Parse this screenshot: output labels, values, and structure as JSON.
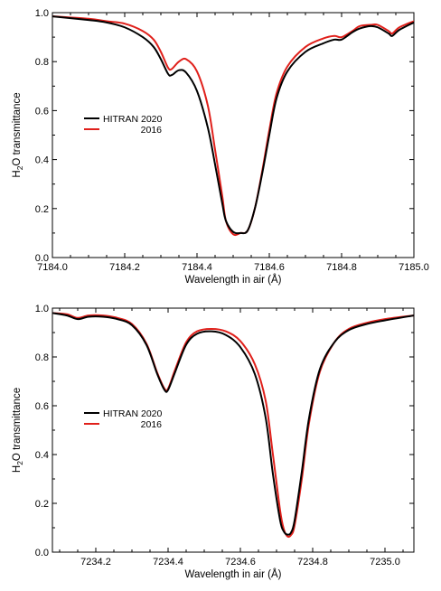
{
  "chart_data": [
    {
      "type": "line",
      "xlabel": "Wavelength in air (Å)",
      "ylabel_main": "H",
      "ylabel_sub": "2",
      "ylabel_rest": "O transmittance",
      "xlim": [
        7184.0,
        7185.0
      ],
      "ylim": [
        0.0,
        1.0
      ],
      "x_ticks": [
        "7184.0",
        "7184.2",
        "7184.4",
        "7184.6",
        "7184.8",
        "7185.0"
      ],
      "x_tick_values": [
        7184.0,
        7184.2,
        7184.4,
        7184.6,
        7184.8,
        7185.0
      ],
      "y_ticks": [
        "0.0",
        "0.2",
        "0.4",
        "0.6",
        "0.8",
        "1.0"
      ],
      "y_tick_values": [
        0.0,
        0.2,
        0.4,
        0.6,
        0.8,
        1.0
      ],
      "legend_placement": "left",
      "series": [
        {
          "name": "HITRAN 2020",
          "color": "#000000",
          "x": [
            7184.0,
            7184.1,
            7184.15,
            7184.2,
            7184.25,
            7184.28,
            7184.3,
            7184.32,
            7184.33,
            7184.35,
            7184.37,
            7184.4,
            7184.43,
            7184.45,
            7184.47,
            7184.48,
            7184.5,
            7184.52,
            7184.54,
            7184.56,
            7184.58,
            7184.6,
            7184.62,
            7184.65,
            7184.7,
            7184.75,
            7184.78,
            7184.8,
            7184.83,
            7184.85,
            7184.88,
            7184.9,
            7184.93,
            7184.94,
            7184.96,
            7185.0
          ],
          "y": [
            0.985,
            0.97,
            0.96,
            0.94,
            0.9,
            0.86,
            0.81,
            0.75,
            0.745,
            0.765,
            0.755,
            0.68,
            0.53,
            0.38,
            0.22,
            0.15,
            0.105,
            0.1,
            0.11,
            0.2,
            0.34,
            0.5,
            0.65,
            0.76,
            0.84,
            0.875,
            0.89,
            0.89,
            0.92,
            0.935,
            0.945,
            0.94,
            0.915,
            0.905,
            0.93,
            0.96
          ]
        },
        {
          "name": "2016",
          "color": "#e0201b",
          "x": [
            7184.0,
            7184.1,
            7184.15,
            7184.2,
            7184.25,
            7184.28,
            7184.3,
            7184.32,
            7184.33,
            7184.35,
            7184.37,
            7184.4,
            7184.43,
            7184.45,
            7184.47,
            7184.48,
            7184.5,
            7184.52,
            7184.54,
            7184.56,
            7184.58,
            7184.6,
            7184.62,
            7184.65,
            7184.7,
            7184.75,
            7184.78,
            7184.8,
            7184.83,
            7184.85,
            7184.88,
            7184.9,
            7184.93,
            7184.94,
            7184.96,
            7185.0
          ],
          "y": [
            0.985,
            0.975,
            0.965,
            0.955,
            0.925,
            0.89,
            0.84,
            0.775,
            0.77,
            0.8,
            0.81,
            0.76,
            0.62,
            0.44,
            0.25,
            0.15,
            0.095,
            0.1,
            0.11,
            0.2,
            0.35,
            0.52,
            0.67,
            0.78,
            0.86,
            0.895,
            0.905,
            0.9,
            0.925,
            0.945,
            0.95,
            0.95,
            0.925,
            0.915,
            0.94,
            0.965
          ]
        }
      ]
    },
    {
      "type": "line",
      "xlabel": "Wavelength in air (Å)",
      "ylabel_main": "H",
      "ylabel_sub": "2",
      "ylabel_rest": "O transmittance",
      "xlim": [
        7234.08,
        7235.08
      ],
      "ylim": [
        0.0,
        1.0
      ],
      "x_ticks": [
        "7234.2",
        "7234.4",
        "7234.6",
        "7234.8",
        "7235.0"
      ],
      "x_tick_values": [
        7234.2,
        7234.4,
        7234.6,
        7234.8,
        7235.0
      ],
      "y_ticks": [
        "0.0",
        "0.2",
        "0.4",
        "0.6",
        "0.8",
        "1.0"
      ],
      "y_tick_values": [
        0.0,
        0.2,
        0.4,
        0.6,
        0.8,
        1.0
      ],
      "legend_placement": "left",
      "series": [
        {
          "name": "HITRAN 2020",
          "color": "#000000",
          "x": [
            7234.08,
            7234.12,
            7234.15,
            7234.18,
            7234.22,
            7234.26,
            7234.3,
            7234.34,
            7234.37,
            7234.39,
            7234.4,
            7234.42,
            7234.45,
            7234.48,
            7234.52,
            7234.56,
            7234.6,
            7234.64,
            7234.67,
            7234.69,
            7234.71,
            7234.72,
            7234.73,
            7234.74,
            7234.75,
            7234.77,
            7234.79,
            7234.82,
            7234.86,
            7234.9,
            7234.95,
            7235.0,
            7235.08
          ],
          "y": [
            0.98,
            0.97,
            0.955,
            0.965,
            0.965,
            0.955,
            0.93,
            0.85,
            0.73,
            0.665,
            0.665,
            0.74,
            0.85,
            0.895,
            0.905,
            0.89,
            0.84,
            0.73,
            0.55,
            0.32,
            0.13,
            0.085,
            0.072,
            0.08,
            0.13,
            0.33,
            0.55,
            0.75,
            0.86,
            0.91,
            0.935,
            0.95,
            0.97
          ]
        },
        {
          "name": "2016",
          "color": "#e0201b",
          "x": [
            7234.08,
            7234.12,
            7234.15,
            7234.18,
            7234.22,
            7234.26,
            7234.3,
            7234.34,
            7234.37,
            7234.39,
            7234.4,
            7234.42,
            7234.45,
            7234.48,
            7234.52,
            7234.56,
            7234.6,
            7234.64,
            7234.67,
            7234.69,
            7234.71,
            7234.72,
            7234.73,
            7234.74,
            7234.75,
            7234.77,
            7234.79,
            7234.82,
            7234.86,
            7234.9,
            7234.95,
            7235.0,
            7235.08
          ],
          "y": [
            0.98,
            0.975,
            0.96,
            0.97,
            0.97,
            0.96,
            0.935,
            0.855,
            0.735,
            0.67,
            0.67,
            0.75,
            0.86,
            0.905,
            0.915,
            0.905,
            0.865,
            0.77,
            0.62,
            0.4,
            0.17,
            0.095,
            0.065,
            0.07,
            0.11,
            0.3,
            0.53,
            0.74,
            0.86,
            0.915,
            0.94,
            0.955,
            0.97
          ]
        }
      ]
    }
  ]
}
